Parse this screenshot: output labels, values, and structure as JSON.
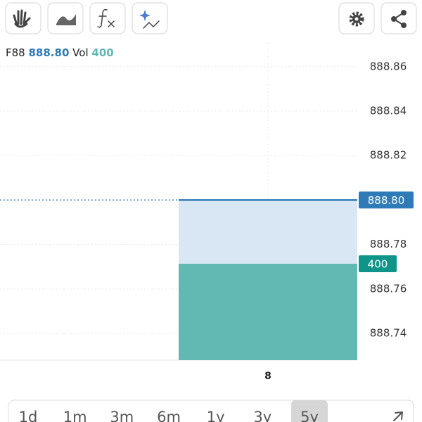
{
  "chart_data": {
    "type": "area",
    "categories": [
      "8"
    ],
    "series": [
      {
        "name": "F88",
        "color": "#2e7bb8",
        "values": [
          888.8
        ],
        "value_labels": [
          "888.80"
        ]
      },
      {
        "name": "Vol",
        "color": "#62b8b2",
        "values": [
          400
        ],
        "axis": "y2"
      }
    ],
    "ylim": [
      888.728,
      888.871
    ],
    "yticks": [
      888.74,
      888.76,
      888.78,
      {
        "value": 888.8,
        "label": "888.80"
      },
      888.82,
      888.84,
      888.86
    ],
    "y2lim": [
      0,
      1320
    ],
    "grid": true
  },
  "range_selector": {
    "options": [
      "1d",
      "1m",
      "3m",
      "6m",
      "1y",
      "3y",
      "5y"
    ],
    "selected": 6
  }
}
